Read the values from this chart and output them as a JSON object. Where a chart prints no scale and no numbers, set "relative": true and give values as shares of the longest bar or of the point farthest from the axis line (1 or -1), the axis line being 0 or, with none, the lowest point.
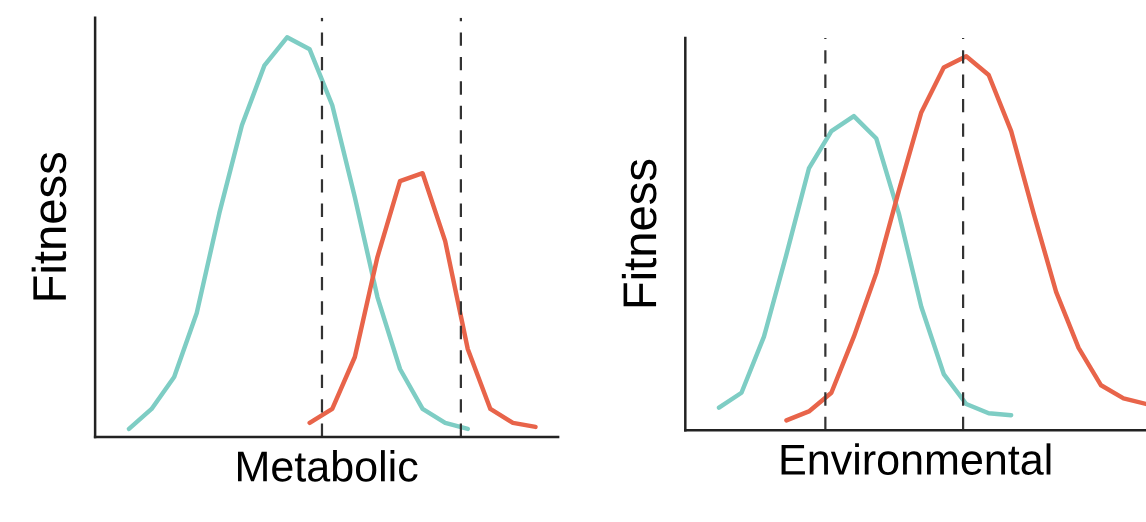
{
  "chart_data": [
    {
      "type": "line",
      "relative": true,
      "xlabel": "Metabolic",
      "ylabel": "Fitness",
      "line_style": "solid",
      "categories": [
        null,
        null,
        null,
        null,
        null,
        null,
        null,
        null,
        null,
        null,
        null,
        null,
        null,
        null,
        null,
        null,
        null,
        null,
        null,
        null,
        null
      ],
      "series": [
        {
          "color": "#7ecdc4",
          "values": [
            null,
            0.02,
            0.07,
            0.15,
            0.31,
            0.56,
            0.78,
            0.93,
            1.0,
            0.97,
            0.83,
            0.6,
            0.35,
            0.17,
            0.07,
            0.035,
            0.02,
            null,
            null,
            null,
            null
          ]
        },
        {
          "color": "#e8644a",
          "values": [
            null,
            null,
            null,
            null,
            null,
            null,
            null,
            null,
            null,
            0.035,
            0.07,
            0.2,
            0.45,
            0.64,
            0.66,
            0.49,
            0.22,
            0.07,
            0.035,
            0.025,
            null
          ]
        }
      ]
    },
    {
      "type": "line",
      "relative": true,
      "xlabel": "Environmental",
      "ylabel": "Fitness",
      "line_style": "solid",
      "categories": [
        null,
        null,
        null,
        null,
        null,
        null,
        null,
        null,
        null,
        null,
        null,
        null,
        null,
        null,
        null,
        null,
        null,
        null,
        null,
        null,
        null
      ],
      "series": [
        {
          "color": "#7ecdc4",
          "values": [
            null,
            0.06,
            0.1,
            0.25,
            0.47,
            0.7,
            0.8,
            0.84,
            0.78,
            0.58,
            0.33,
            0.15,
            0.07,
            0.045,
            0.04,
            null,
            null,
            null,
            null,
            null,
            null
          ]
        },
        {
          "color": "#e8644a",
          "values": [
            null,
            null,
            null,
            null,
            0.026,
            0.05,
            0.1,
            0.25,
            0.42,
            0.64,
            0.85,
            0.97,
            1.0,
            0.95,
            0.8,
            0.58,
            0.37,
            0.22,
            0.12,
            0.085,
            0.07
          ]
        }
      ]
    }
  ]
}
